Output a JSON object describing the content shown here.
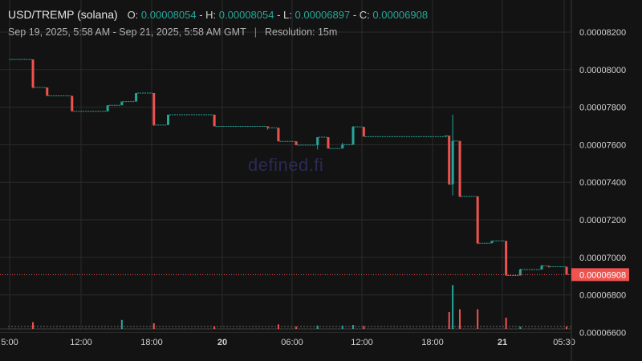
{
  "header": {
    "symbol": "USD/TREMP (solana)",
    "o_label": "O:",
    "o_value": "0.00008054",
    "h_label": "H:",
    "h_value": "0.00008054",
    "l_label": "L:",
    "l_value": "0.00006897",
    "c_label": "C:",
    "c_value": "0.00006908",
    "date_range": "Sep 19, 2025, 5:58 AM - Sep 21, 2025, 5:58 AM GMT",
    "separator": "|",
    "resolution": "Resolution: 15m"
  },
  "watermark": "defined.fi",
  "colors": {
    "up": "#26a69a",
    "down": "#ef5350",
    "grid": "#2b2b2b",
    "background": "#131313"
  },
  "chart_data": {
    "type": "candlestick",
    "ylim": [
      6.55e-05,
      8.25e-05
    ],
    "x_ticks": [
      "5:00",
      "12:00",
      "18:00",
      "20",
      "06:00",
      "12:00",
      "18:00",
      "21",
      "05:30"
    ],
    "y_ticks": [
      "0.00008200",
      "0.00008000",
      "0.00007800",
      "0.00007600",
      "0.00007400",
      "0.00007200",
      "0.00007000",
      "0.00006800",
      "0.00006600"
    ],
    "last_price": "0.00006908",
    "candles": [
      {
        "t": 0,
        "o": 8.054e-05,
        "h": 8.054e-05,
        "l": 8.054e-05,
        "c": 8.054e-05
      },
      {
        "t": 7,
        "o": 8.054e-05,
        "h": 8.054e-05,
        "l": 7.9e-05,
        "c": 7.905e-05
      },
      {
        "t": 11,
        "o": 7.905e-05,
        "h": 7.905e-05,
        "l": 7.86e-05,
        "c": 7.86e-05
      },
      {
        "t": 18,
        "o": 7.86e-05,
        "h": 7.86e-05,
        "l": 7.775e-05,
        "c": 7.778e-05
      },
      {
        "t": 28,
        "o": 7.778e-05,
        "h": 7.81e-05,
        "l": 7.778e-05,
        "c": 7.81e-05
      },
      {
        "t": 32,
        "o": 7.81e-05,
        "h": 7.83e-05,
        "l": 7.81e-05,
        "c": 7.83e-05
      },
      {
        "t": 36,
        "o": 7.83e-05,
        "h": 7.875e-05,
        "l": 7.83e-05,
        "c": 7.875e-05
      },
      {
        "t": 41,
        "o": 7.875e-05,
        "h": 7.875e-05,
        "l": 7.7e-05,
        "c": 7.705e-05
      },
      {
        "t": 45,
        "o": 7.705e-05,
        "h": 7.76e-05,
        "l": 7.705e-05,
        "c": 7.76e-05
      },
      {
        "t": 58,
        "o": 7.76e-05,
        "h": 7.76e-05,
        "l": 7.695e-05,
        "c": 7.698e-05
      },
      {
        "t": 73,
        "o": 7.698e-05,
        "h": 7.698e-05,
        "l": 7.68e-05,
        "c": 7.69e-05
      },
      {
        "t": 76,
        "o": 7.69e-05,
        "h": 7.69e-05,
        "l": 7.615e-05,
        "c": 7.618e-05
      },
      {
        "t": 81,
        "o": 7.618e-05,
        "h": 7.618e-05,
        "l": 7.595e-05,
        "c": 7.598e-05
      },
      {
        "t": 87,
        "o": 7.598e-05,
        "h": 7.64e-05,
        "l": 7.575e-05,
        "c": 7.64e-05
      },
      {
        "t": 90,
        "o": 7.64e-05,
        "h": 7.64e-05,
        "l": 7.58e-05,
        "c": 7.58e-05
      },
      {
        "t": 94,
        "o": 7.58e-05,
        "h": 7.61e-05,
        "l": 7.58e-05,
        "c": 7.6e-05
      },
      {
        "t": 97,
        "o": 7.6e-05,
        "h": 7.7e-05,
        "l": 7.6e-05,
        "c": 7.695e-05
      },
      {
        "t": 100,
        "o": 7.695e-05,
        "h": 7.695e-05,
        "l": 7.64e-05,
        "c": 7.643e-05
      },
      {
        "t": 123,
        "o": 7.643e-05,
        "h": 7.65e-05,
        "l": 7.64e-05,
        "c": 7.648e-05
      },
      {
        "t": 124,
        "o": 7.648e-05,
        "h": 7.648e-05,
        "l": 7.385e-05,
        "c": 7.39e-05
      },
      {
        "t": 125,
        "o": 7.39e-05,
        "h": 7.76e-05,
        "l": 7.33e-05,
        "c": 7.62e-05
      },
      {
        "t": 127,
        "o": 7.62e-05,
        "h": 7.62e-05,
        "l": 7.32e-05,
        "c": 7.325e-05
      },
      {
        "t": 132,
        "o": 7.325e-05,
        "h": 7.325e-05,
        "l": 7.07e-05,
        "c": 7.075e-05
      },
      {
        "t": 136,
        "o": 7.075e-05,
        "h": 7.09e-05,
        "l": 7.075e-05,
        "c": 7.088e-05
      },
      {
        "t": 140,
        "o": 7.088e-05,
        "h": 7.088e-05,
        "l": 6.9e-05,
        "c": 6.903e-05
      },
      {
        "t": 144,
        "o": 6.903e-05,
        "h": 6.94e-05,
        "l": 6.903e-05,
        "c": 6.935e-05
      },
      {
        "t": 150,
        "o": 6.935e-05,
        "h": 6.96e-05,
        "l": 6.935e-05,
        "c": 6.955e-05
      },
      {
        "t": 152,
        "o": 6.955e-05,
        "h": 6.955e-05,
        "l": 6.945e-05,
        "c": 6.95e-05
      },
      {
        "t": 157,
        "o": 6.95e-05,
        "h": 6.95e-05,
        "l": 6.905e-05,
        "c": 6.908e-05
      }
    ],
    "volumes": [
      {
        "t": 7,
        "v": 0.12,
        "dir": "down"
      },
      {
        "t": 32,
        "v": 0.16,
        "dir": "up"
      },
      {
        "t": 41,
        "v": 0.1,
        "dir": "down"
      },
      {
        "t": 58,
        "v": 0.05,
        "dir": "down"
      },
      {
        "t": 76,
        "v": 0.08,
        "dir": "down"
      },
      {
        "t": 81,
        "v": 0.04,
        "dir": "down"
      },
      {
        "t": 87,
        "v": 0.06,
        "dir": "up"
      },
      {
        "t": 94,
        "v": 0.06,
        "dir": "up"
      },
      {
        "t": 97,
        "v": 0.07,
        "dir": "up"
      },
      {
        "t": 100,
        "v": 0.05,
        "dir": "down"
      },
      {
        "t": 124,
        "v": 0.3,
        "dir": "down"
      },
      {
        "t": 125,
        "v": 0.78,
        "dir": "up"
      },
      {
        "t": 127,
        "v": 0.35,
        "dir": "down"
      },
      {
        "t": 132,
        "v": 0.35,
        "dir": "down"
      },
      {
        "t": 140,
        "v": 0.2,
        "dir": "down"
      },
      {
        "t": 144,
        "v": 0.04,
        "dir": "up"
      },
      {
        "t": 157,
        "v": 0.04,
        "dir": "down"
      }
    ]
  }
}
